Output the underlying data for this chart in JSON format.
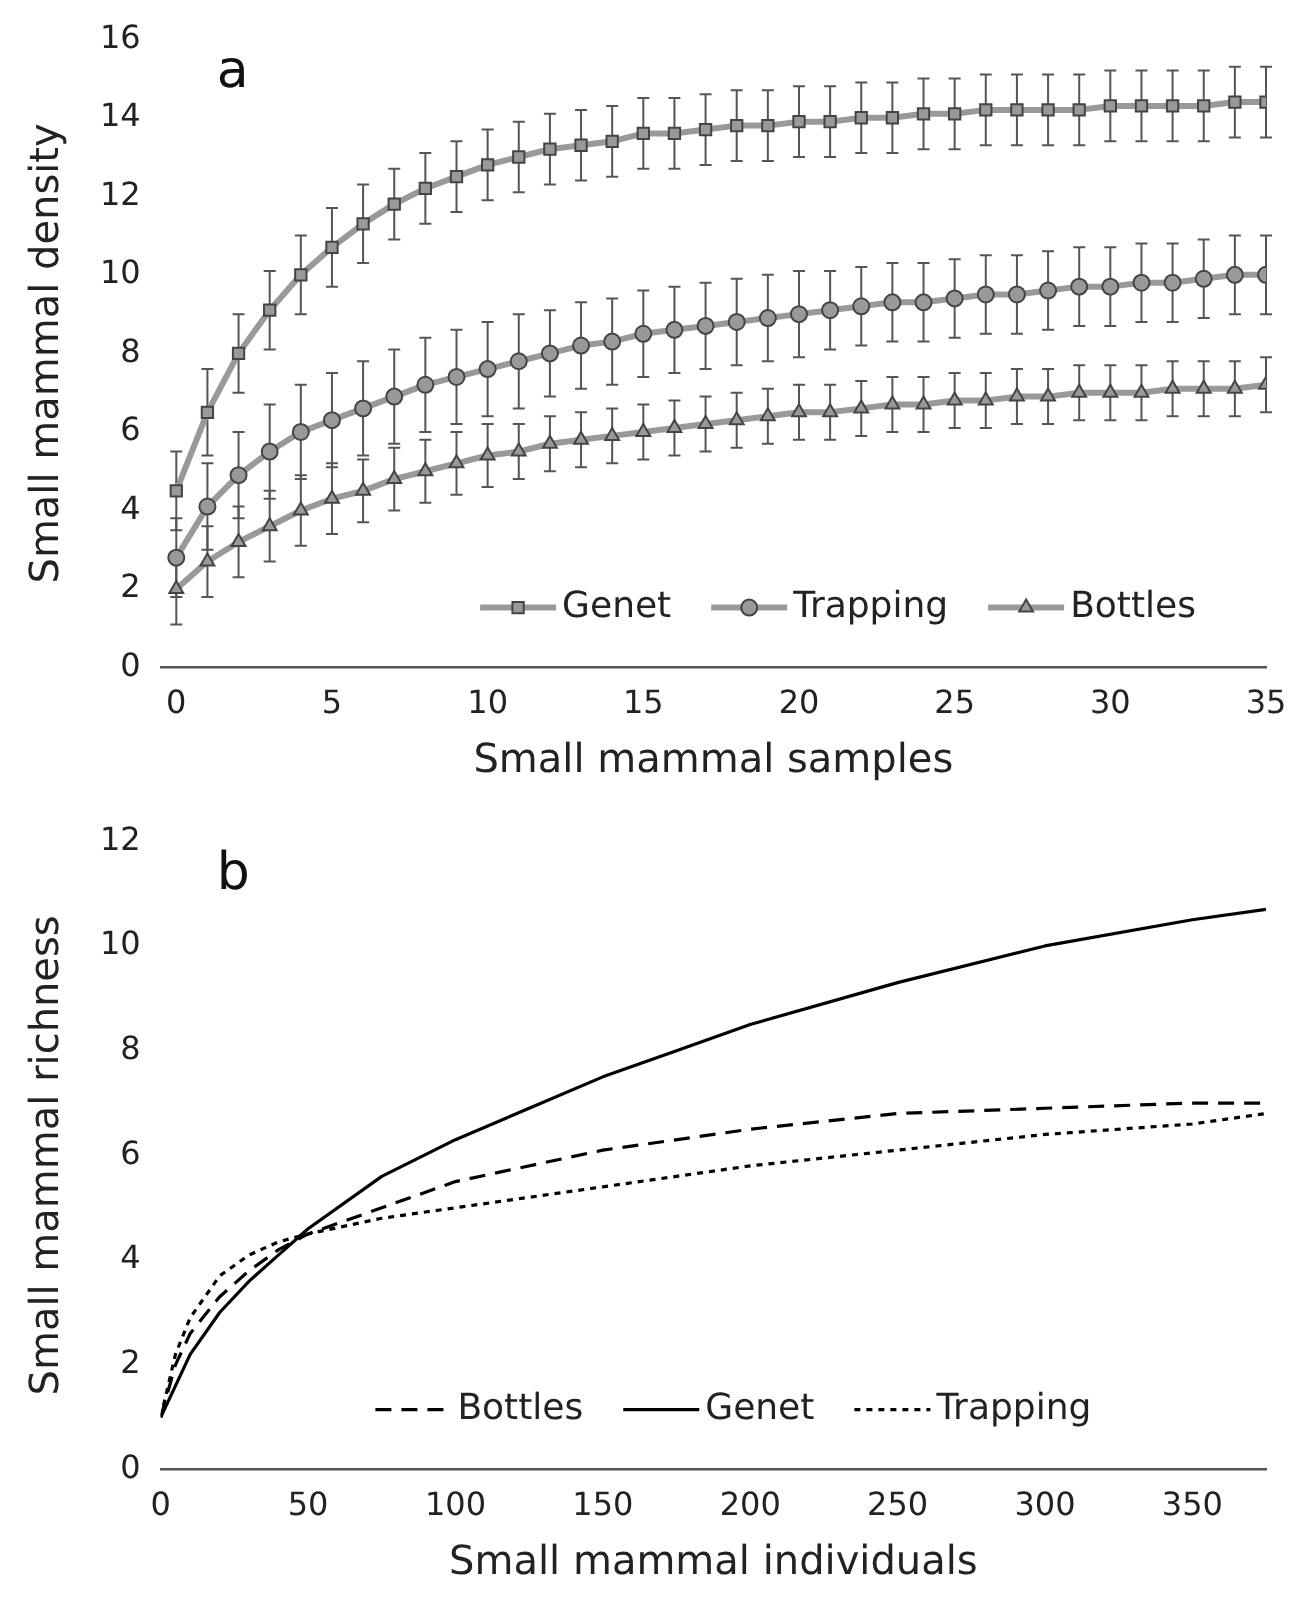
{
  "chart_data": [
    {
      "type": "line",
      "annotations": [
        "a"
      ],
      "xlabel": "Small mammal samples",
      "ylabel": "Small mammal density",
      "x": [
        0,
        1,
        2,
        3,
        4,
        5,
        6,
        7,
        8,
        9,
        10,
        11,
        12,
        13,
        14,
        15,
        16,
        17,
        18,
        19,
        20,
        21,
        22,
        23,
        24,
        25,
        26,
        27,
        28,
        29,
        30,
        31,
        32,
        33,
        34,
        35
      ],
      "xlim": [
        -0.5,
        35
      ],
      "xticks": [
        0,
        5,
        10,
        15,
        20,
        25,
        30,
        35
      ],
      "ylim": [
        0,
        16
      ],
      "yticks": [
        0,
        2,
        4,
        6,
        8,
        10,
        12,
        14,
        16
      ],
      "grid": false,
      "legend": "bottom right",
      "series": [
        {
          "name": "Genet",
          "color": "#999999",
          "marker": "square",
          "values": [
            4.5,
            6.5,
            8.0,
            9.1,
            10.0,
            10.7,
            11.3,
            11.8,
            12.2,
            12.5,
            12.8,
            13.0,
            13.2,
            13.3,
            13.4,
            13.6,
            13.6,
            13.7,
            13.8,
            13.8,
            13.9,
            13.9,
            14.0,
            14.0,
            14.1,
            14.1,
            14.2,
            14.2,
            14.2,
            14.2,
            14.3,
            14.3,
            14.3,
            14.3,
            14.4,
            14.4
          ],
          "errors": [
            1.0,
            1.1,
            1.0,
            1.0,
            1.0,
            1.0,
            1.0,
            0.9,
            0.9,
            0.9,
            0.9,
            0.9,
            0.9,
            0.9,
            0.9,
            0.9,
            0.9,
            0.9,
            0.9,
            0.9,
            0.9,
            0.9,
            0.9,
            0.9,
            0.9,
            0.9,
            0.9,
            0.9,
            0.9,
            0.9,
            0.9,
            0.9,
            0.9,
            0.9,
            0.9,
            0.9
          ]
        },
        {
          "name": "Trapping",
          "color": "#999999",
          "marker": "circle",
          "values": [
            2.8,
            4.1,
            4.9,
            5.5,
            6.0,
            6.3,
            6.6,
            6.9,
            7.2,
            7.4,
            7.6,
            7.8,
            8.0,
            8.2,
            8.3,
            8.5,
            8.6,
            8.7,
            8.8,
            8.9,
            9.0,
            9.1,
            9.2,
            9.3,
            9.3,
            9.4,
            9.5,
            9.5,
            9.6,
            9.7,
            9.7,
            9.8,
            9.8,
            9.9,
            10.0,
            10.0
          ],
          "errors": [
            1.0,
            1.1,
            1.1,
            1.2,
            1.2,
            1.2,
            1.2,
            1.2,
            1.2,
            1.2,
            1.2,
            1.2,
            1.1,
            1.1,
            1.1,
            1.1,
            1.1,
            1.1,
            1.1,
            1.1,
            1.1,
            1.0,
            1.0,
            1.0,
            1.0,
            1.0,
            1.0,
            1.0,
            1.0,
            1.0,
            1.0,
            1.0,
            1.0,
            1.0,
            1.0,
            1.0
          ]
        },
        {
          "name": "Bottles",
          "color": "#999999",
          "marker": "triangle",
          "values": [
            2.0,
            2.7,
            3.2,
            3.6,
            4.0,
            4.3,
            4.5,
            4.8,
            5.0,
            5.2,
            5.4,
            5.5,
            5.7,
            5.8,
            5.9,
            6.0,
            6.1,
            6.2,
            6.3,
            6.4,
            6.5,
            6.5,
            6.6,
            6.7,
            6.7,
            6.8,
            6.8,
            6.9,
            6.9,
            7.0,
            7.0,
            7.0,
            7.1,
            7.1,
            7.1,
            7.2
          ],
          "errors": [
            0.9,
            0.9,
            0.9,
            0.9,
            0.9,
            0.9,
            0.8,
            0.8,
            0.8,
            0.8,
            0.8,
            0.7,
            0.7,
            0.7,
            0.7,
            0.7,
            0.7,
            0.7,
            0.7,
            0.7,
            0.7,
            0.7,
            0.7,
            0.7,
            0.7,
            0.7,
            0.7,
            0.7,
            0.7,
            0.7,
            0.7,
            0.7,
            0.7,
            0.7,
            0.7,
            0.7
          ]
        }
      ]
    },
    {
      "type": "line",
      "annotations": [
        "b"
      ],
      "xlabel": "Small mammal individuals",
      "ylabel": "Small mammal richness",
      "xlim": [
        0,
        375
      ],
      "xticks": [
        0,
        50,
        100,
        150,
        200,
        250,
        300,
        350
      ],
      "ylim": [
        0,
        12
      ],
      "yticks": [
        0,
        2,
        4,
        6,
        8,
        10,
        12
      ],
      "grid": false,
      "legend": "bottom",
      "marker": "none",
      "series": [
        {
          "name": "Bottles",
          "color": "#000000",
          "line_style": "dashed",
          "x": [
            0,
            5,
            10,
            20,
            30,
            40,
            50,
            75,
            100,
            150,
            200,
            250,
            300,
            350,
            375
          ],
          "values": [
            1.0,
            2.0,
            2.6,
            3.3,
            3.8,
            4.2,
            4.5,
            5.0,
            5.5,
            6.1,
            6.5,
            6.8,
            6.9,
            7.0,
            7.0
          ]
        },
        {
          "name": "Genet",
          "color": "#000000",
          "line_style": "solid",
          "x": [
            0,
            5,
            10,
            20,
            30,
            40,
            50,
            75,
            100,
            125,
            150,
            175,
            200,
            250,
            300,
            350,
            375
          ],
          "values": [
            1.0,
            1.6,
            2.2,
            3.0,
            3.6,
            4.1,
            4.6,
            5.6,
            6.3,
            6.9,
            7.5,
            8.0,
            8.5,
            9.3,
            10.0,
            10.5,
            10.7
          ]
        },
        {
          "name": "Trapping",
          "color": "#000000",
          "line_style": "dotted",
          "x": [
            0,
            5,
            10,
            20,
            30,
            40,
            50,
            75,
            100,
            150,
            200,
            250,
            300,
            350,
            375
          ],
          "values": [
            1.0,
            2.2,
            2.9,
            3.7,
            4.1,
            4.35,
            4.5,
            4.8,
            5.0,
            5.4,
            5.8,
            6.1,
            6.4,
            6.6,
            6.8
          ]
        }
      ]
    }
  ]
}
